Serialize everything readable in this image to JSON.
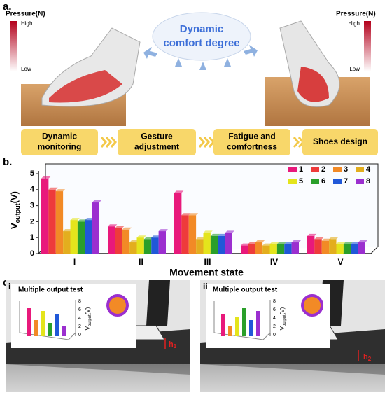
{
  "panel_a": {
    "label": "a.",
    "legend_title": "Pressure(N)",
    "high": "High",
    "low": "Low",
    "cloud_lines": [
      "Dynamic",
      "comfort degree"
    ],
    "steps": [
      [
        "Dynamic",
        "monitoring"
      ],
      [
        "Gesture",
        "adjustment"
      ],
      [
        "Fatigue and",
        "comfortness"
      ],
      [
        "Shoes design"
      ]
    ]
  },
  "chart_data": {
    "type": "bar",
    "panel_label": "b.",
    "x_label": "Movement state",
    "y_label": {
      "main": "V",
      "sub": "output",
      "unit": "(V)"
    },
    "categories": [
      "I",
      "II",
      "III",
      "IV",
      "V"
    ],
    "ylim": [
      0,
      5
    ],
    "yticks": [
      0,
      1,
      2,
      3,
      4,
      5
    ],
    "legend": "top-right",
    "series": [
      {
        "name": "1",
        "color": "#e8197b",
        "values": [
          4.7,
          1.7,
          3.8,
          0.5,
          1.1
        ]
      },
      {
        "name": "2",
        "color": "#ee3b3b",
        "values": [
          4.0,
          1.6,
          2.4,
          0.6,
          0.9
        ]
      },
      {
        "name": "3",
        "color": "#f28a26",
        "values": [
          3.9,
          1.5,
          2.4,
          0.7,
          0.8
        ]
      },
      {
        "name": "4",
        "color": "#e3ae1e",
        "values": [
          1.4,
          0.7,
          0.9,
          0.5,
          0.9
        ]
      },
      {
        "name": "5",
        "color": "#e4e41c",
        "values": [
          2.1,
          1.0,
          1.3,
          0.6,
          0.6
        ]
      },
      {
        "name": "6",
        "color": "#2a9f2a",
        "values": [
          2.0,
          0.9,
          1.1,
          0.6,
          0.6
        ]
      },
      {
        "name": "7",
        "color": "#2058d8",
        "values": [
          2.1,
          1.0,
          1.1,
          0.6,
          0.6
        ]
      },
      {
        "name": "8",
        "color": "#9b2fcf",
        "values": [
          3.2,
          1.4,
          1.3,
          0.7,
          0.7
        ]
      }
    ]
  },
  "panel_c": {
    "label": "c.",
    "subpanels": [
      {
        "label": "i",
        "title": "Multiple output test",
        "height": "h",
        "sub": "1"
      },
      {
        "label": "ii",
        "title": "Multiple output test",
        "height": "h",
        "sub": "2"
      }
    ],
    "axis_main": "V",
    "axis_sub": "output",
    "axis_unit": "(V)",
    "axis_ticks": [
      "8",
      "6",
      "4",
      "2",
      "0"
    ]
  }
}
